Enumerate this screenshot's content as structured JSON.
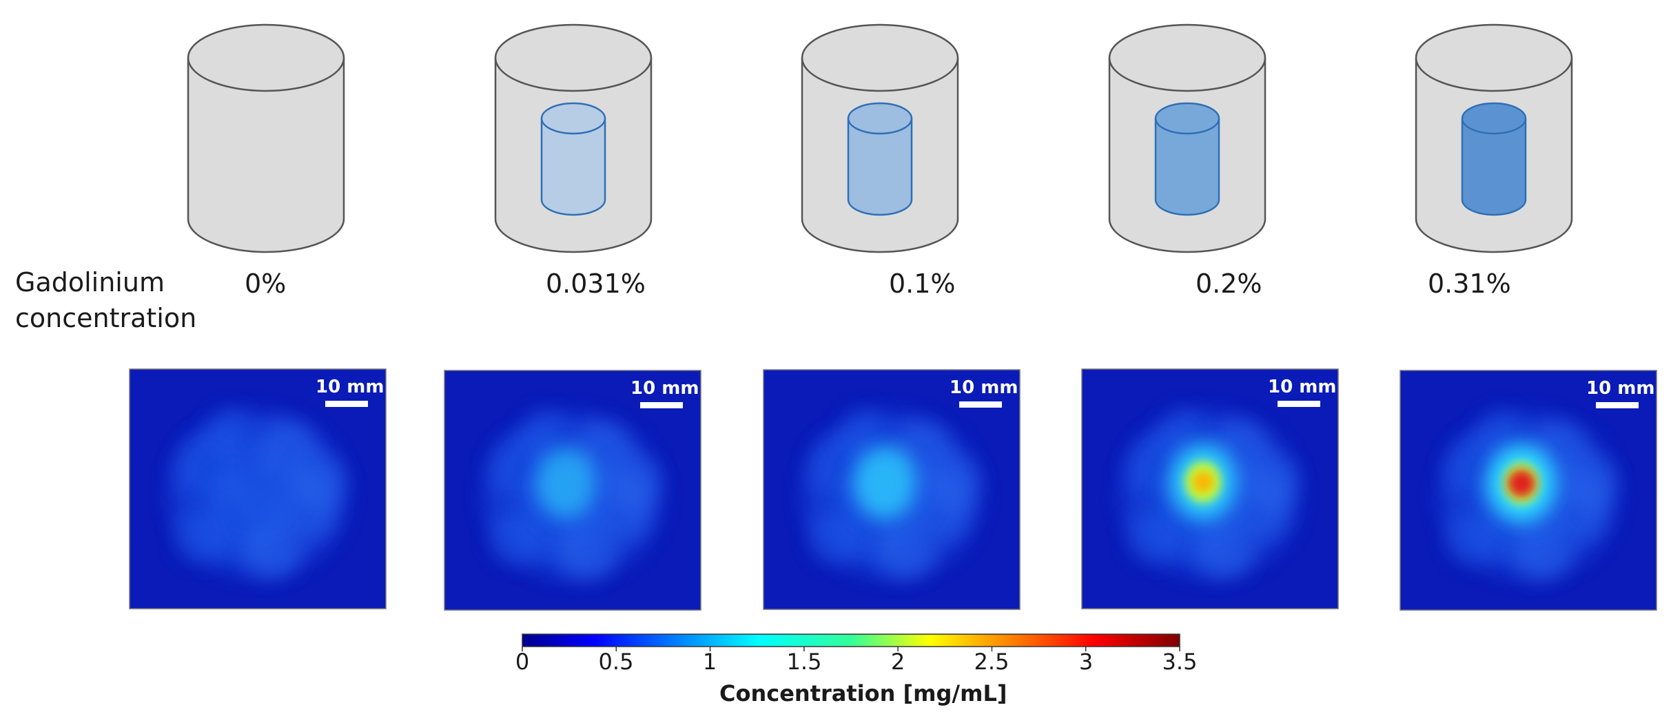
{
  "row_label": {
    "line1": "Gadolinium",
    "line2": "concentration"
  },
  "samples": [
    {
      "label": "0%",
      "inner_fill": null,
      "spot": 0.0
    },
    {
      "label": "0.031%",
      "inner_fill": "#b7cde6",
      "spot": 0.18
    },
    {
      "label": "0.1%",
      "inner_fill": "#9dbde1",
      "spot": 0.42
    },
    {
      "label": "0.2%",
      "inner_fill": "#78a8da",
      "spot": 0.68
    },
    {
      "label": "0.31%",
      "inner_fill": "#5b93d2",
      "spot": 0.9
    }
  ],
  "scalebar": {
    "label": "10 mm"
  },
  "colorbar": {
    "min": 0,
    "max": 3.5,
    "ticks": [
      "0",
      "0.5",
      "1",
      "1.5",
      "2",
      "2.5",
      "3",
      "3.5"
    ],
    "title": "Concentration [mg/mL]",
    "colormap": "jet"
  },
  "colors": {
    "outer_cylinder": "#dcdcdc",
    "outer_stroke": "#555555",
    "inner_stroke": "#2f6fb4",
    "image_background": "#0a1bb8"
  }
}
